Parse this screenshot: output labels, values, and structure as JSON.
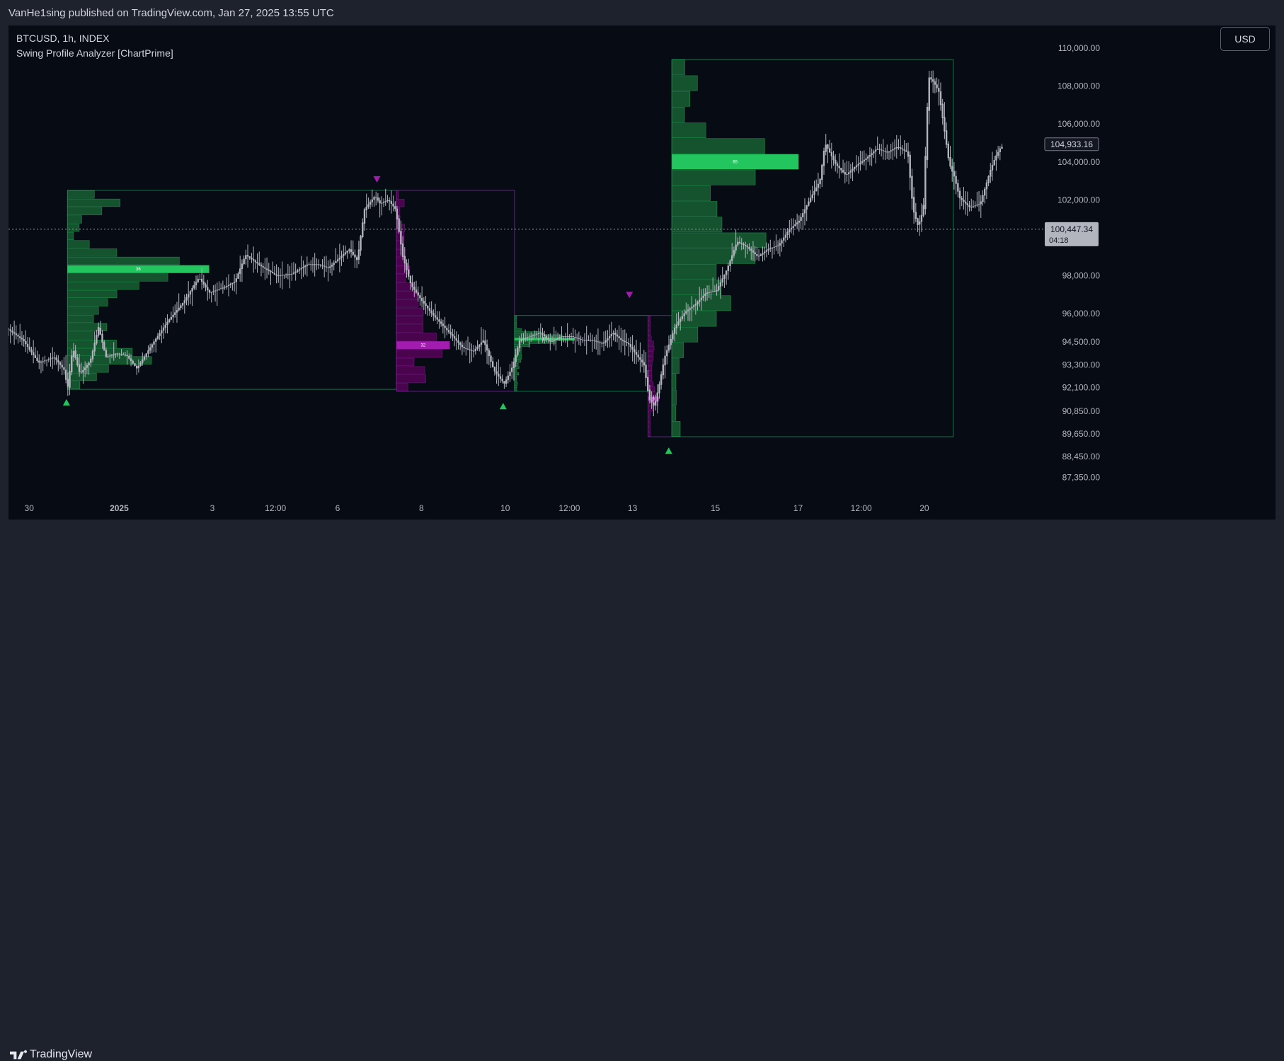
{
  "header": {
    "published_text": "VanHe1sing published on TradingView.com, Jan 27, 2025 13:55 UTC"
  },
  "legend": {
    "symbol_line": "BTCUSD, 1h, INDEX",
    "indicator_line": "Swing Profile Analyzer [ChartPrime]"
  },
  "toolbar": {
    "currency_label": "USD"
  },
  "footer": {
    "brand": "TradingView"
  },
  "colors": {
    "background": "#070b14",
    "candle": "#b2b5be",
    "bull_profile": "#22c55e",
    "bull_profile_dark": "#14532d",
    "bear_profile": "#a21caf",
    "bear_profile_dark": "#4a044e",
    "axis_text": "#b2b5be",
    "price_label_bg": "#b2b5be"
  },
  "chart_data": {
    "type": "candlestick",
    "symbol": "BTCUSD",
    "timeframe": "1h",
    "price_ticks": [
      "110,000.00",
      "108,000.00",
      "106,000.00",
      "104,000.00",
      "102,000.00",
      "98,000.00",
      "96,000.00",
      "94,500.00",
      "93,300.00",
      "92,100.00",
      "90,850.00",
      "89,650.00",
      "88,450.00",
      "87,350.00"
    ],
    "price_tick_values": [
      110000,
      108000,
      106000,
      104000,
      102000,
      98000,
      96000,
      94500,
      93300,
      92100,
      90850,
      89650,
      88450,
      87350
    ],
    "time_ticks": [
      {
        "label": "30",
        "t": 0.02
      },
      {
        "label": "2025",
        "t": 0.107
      },
      {
        "label": "3",
        "t": 0.197
      },
      {
        "label": "12:00",
        "t": 0.258
      },
      {
        "label": "6",
        "t": 0.318
      },
      {
        "label": "8",
        "t": 0.399
      },
      {
        "label": "10",
        "t": 0.48
      },
      {
        "label": "12:00",
        "t": 0.542
      },
      {
        "label": "13",
        "t": 0.603
      },
      {
        "label": "15",
        "t": 0.683
      },
      {
        "label": "17",
        "t": 0.763
      },
      {
        "label": "12:00",
        "t": 0.824
      },
      {
        "label": "20",
        "t": 0.885
      }
    ],
    "current_price": {
      "label": "104,933.16",
      "value": 104933.16
    },
    "level_price": {
      "label": "100,447.34",
      "value": 100447.34,
      "countdown": "04:18"
    },
    "price_path": [
      [
        0.0,
        95200
      ],
      [
        0.015,
        94600
      ],
      [
        0.03,
        93400
      ],
      [
        0.045,
        93700
      ],
      [
        0.055,
        93000
      ],
      [
        0.058,
        92000
      ],
      [
        0.063,
        94200
      ],
      [
        0.07,
        92800
      ],
      [
        0.08,
        93500
      ],
      [
        0.088,
        95300
      ],
      [
        0.095,
        93700
      ],
      [
        0.105,
        93900
      ],
      [
        0.115,
        93800
      ],
      [
        0.125,
        93100
      ],
      [
        0.14,
        94400
      ],
      [
        0.155,
        95600
      ],
      [
        0.17,
        96600
      ],
      [
        0.185,
        97900
      ],
      [
        0.195,
        97100
      ],
      [
        0.21,
        97400
      ],
      [
        0.22,
        97700
      ],
      [
        0.23,
        99100
      ],
      [
        0.245,
        98500
      ],
      [
        0.26,
        98000
      ],
      [
        0.275,
        98100
      ],
      [
        0.29,
        98600
      ],
      [
        0.3,
        98600
      ],
      [
        0.31,
        98400
      ],
      [
        0.32,
        98900
      ],
      [
        0.33,
        99400
      ],
      [
        0.338,
        98800
      ],
      [
        0.345,
        101500
      ],
      [
        0.355,
        102200
      ],
      [
        0.36,
        101800
      ],
      [
        0.368,
        102000
      ],
      [
        0.375,
        101500
      ],
      [
        0.382,
        99000
      ],
      [
        0.39,
        97500
      ],
      [
        0.4,
        96700
      ],
      [
        0.41,
        96000
      ],
      [
        0.42,
        95400
      ],
      [
        0.43,
        94800
      ],
      [
        0.44,
        94200
      ],
      [
        0.45,
        94000
      ],
      [
        0.46,
        94600
      ],
      [
        0.47,
        93000
      ],
      [
        0.48,
        92300
      ],
      [
        0.488,
        93200
      ],
      [
        0.495,
        94600
      ],
      [
        0.505,
        94800
      ],
      [
        0.515,
        95000
      ],
      [
        0.525,
        94500
      ],
      [
        0.535,
        94800
      ],
      [
        0.545,
        94800
      ],
      [
        0.555,
        94600
      ],
      [
        0.565,
        94600
      ],
      [
        0.575,
        94400
      ],
      [
        0.585,
        95000
      ],
      [
        0.593,
        94600
      ],
      [
        0.6,
        94400
      ],
      [
        0.608,
        93800
      ],
      [
        0.615,
        93300
      ],
      [
        0.62,
        91500
      ],
      [
        0.625,
        91100
      ],
      [
        0.63,
        92300
      ],
      [
        0.635,
        93700
      ],
      [
        0.645,
        95300
      ],
      [
        0.655,
        96100
      ],
      [
        0.665,
        96500
      ],
      [
        0.675,
        97100
      ],
      [
        0.685,
        97200
      ],
      [
        0.695,
        98300
      ],
      [
        0.705,
        99800
      ],
      [
        0.715,
        99500
      ],
      [
        0.725,
        99000
      ],
      [
        0.735,
        99400
      ],
      [
        0.745,
        99600
      ],
      [
        0.755,
        100400
      ],
      [
        0.765,
        100900
      ],
      [
        0.775,
        102000
      ],
      [
        0.785,
        103000
      ],
      [
        0.79,
        105000
      ],
      [
        0.8,
        103900
      ],
      [
        0.81,
        103300
      ],
      [
        0.82,
        103800
      ],
      [
        0.83,
        104200
      ],
      [
        0.84,
        104700
      ],
      [
        0.85,
        104500
      ],
      [
        0.86,
        104800
      ],
      [
        0.87,
        104500
      ],
      [
        0.875,
        101500
      ],
      [
        0.88,
        100600
      ],
      [
        0.885,
        101500
      ],
      [
        0.89,
        108500
      ],
      [
        0.895,
        108200
      ],
      [
        0.9,
        107700
      ],
      [
        0.91,
        103900
      ],
      [
        0.915,
        103200
      ],
      [
        0.92,
        102100
      ],
      [
        0.93,
        101600
      ],
      [
        0.94,
        101800
      ],
      [
        0.95,
        103600
      ],
      [
        0.955,
        104300
      ],
      [
        0.96,
        104800
      ]
    ],
    "swings": [
      {
        "type": "bull",
        "start": 0.057,
        "end": 0.375,
        "low": 92000,
        "high": 102500,
        "poc": "36"
      },
      {
        "type": "bear",
        "start": 0.375,
        "end": 0.489,
        "low": 91900,
        "high": 102500,
        "poc": "32"
      },
      {
        "type": "bull",
        "start": 0.489,
        "end": 0.618,
        "low": 91900,
        "high": 95900,
        "poc": "13"
      },
      {
        "type": "bear",
        "start": 0.618,
        "end": 0.641,
        "low": 89500,
        "high": 95900,
        "poc": "9"
      },
      {
        "type": "bull",
        "start": 0.641,
        "end": 0.913,
        "low": 89500,
        "high": 109400,
        "poc": "65"
      }
    ],
    "markers": [
      {
        "dir": "up",
        "t": 0.056,
        "price": 91300,
        "color": "bull"
      },
      {
        "dir": "down",
        "t": 0.356,
        "price": 103100,
        "color": "bear"
      },
      {
        "dir": "up",
        "t": 0.478,
        "price": 91100,
        "color": "bull"
      },
      {
        "dir": "down",
        "t": 0.6,
        "price": 97000,
        "color": "bear"
      },
      {
        "dir": "up",
        "t": 0.638,
        "price": 88750,
        "color": "bull"
      }
    ],
    "ylim": [
      86700,
      111200
    ],
    "grid": false,
    "legend": "top-left"
  }
}
